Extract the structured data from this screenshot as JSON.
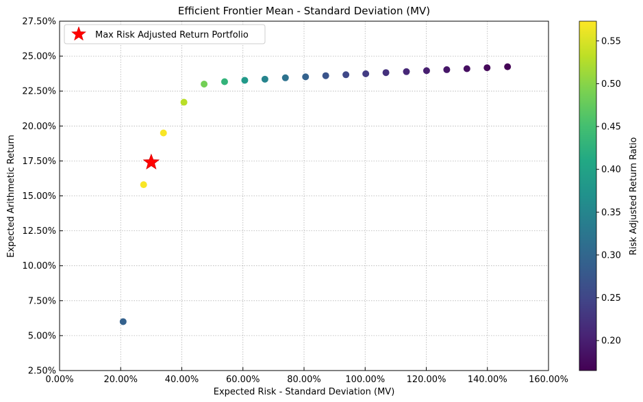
{
  "chart_data": {
    "type": "scatter",
    "title": "Efficient Frontier Mean - Standard Deviation (MV)",
    "xlabel": "Expected Risk - Standard Deviation (MV)",
    "ylabel": "Expected Arithmetic Return",
    "xlim": [
      0.0,
      1.6
    ],
    "ylim": [
      0.025,
      0.275
    ],
    "x_ticks": [
      0.0,
      0.2,
      0.4,
      0.6,
      0.8,
      1.0,
      1.2,
      1.4,
      1.6
    ],
    "x_tick_labels": [
      "0.00%",
      "20.00%",
      "40.00%",
      "60.00%",
      "80.00%",
      "100.00%",
      "120.00%",
      "140.00%",
      "160.00%"
    ],
    "y_ticks": [
      0.025,
      0.05,
      0.075,
      0.1,
      0.125,
      0.15,
      0.175,
      0.2,
      0.225,
      0.25,
      0.275
    ],
    "y_tick_labels": [
      "2.50%",
      "5.00%",
      "7.50%",
      "10.00%",
      "12.50%",
      "15.00%",
      "17.50%",
      "20.00%",
      "22.50%",
      "25.00%",
      "27.50%"
    ],
    "grid": true,
    "legend": {
      "placement": "top-left",
      "entries": [
        {
          "label": "Max Risk Adjusted Return Portfolio",
          "marker": "star",
          "color": "#ff0000"
        }
      ]
    },
    "colorbar": {
      "label": "Risk Adjusted Return Ratio",
      "range": [
        0.165,
        0.573
      ],
      "ticks": [
        0.2,
        0.25,
        0.3,
        0.35,
        0.4,
        0.45,
        0.5,
        0.55
      ],
      "tick_labels": [
        "0.20",
        "0.25",
        "0.30",
        "0.35",
        "0.40",
        "0.45",
        "0.50",
        "0.55"
      ],
      "colormap": "viridis"
    },
    "points": [
      {
        "x": 0.208,
        "y": 0.06,
        "ratio": 0.29
      },
      {
        "x": 0.275,
        "y": 0.158,
        "ratio": 0.57
      },
      {
        "x": 0.34,
        "y": 0.195,
        "ratio": 0.57
      },
      {
        "x": 0.407,
        "y": 0.217,
        "ratio": 0.53
      },
      {
        "x": 0.473,
        "y": 0.23,
        "ratio": 0.486
      },
      {
        "x": 0.54,
        "y": 0.2317,
        "ratio": 0.43
      },
      {
        "x": 0.606,
        "y": 0.2327,
        "ratio": 0.384
      },
      {
        "x": 0.672,
        "y": 0.2335,
        "ratio": 0.348
      },
      {
        "x": 0.739,
        "y": 0.2345,
        "ratio": 0.318
      },
      {
        "x": 0.805,
        "y": 0.2352,
        "ratio": 0.292
      },
      {
        "x": 0.871,
        "y": 0.236,
        "ratio": 0.271
      },
      {
        "x": 0.937,
        "y": 0.2367,
        "ratio": 0.253
      },
      {
        "x": 1.002,
        "y": 0.2374,
        "ratio": 0.237
      },
      {
        "x": 1.068,
        "y": 0.2382,
        "ratio": 0.223
      },
      {
        "x": 1.135,
        "y": 0.2389,
        "ratio": 0.211
      },
      {
        "x": 1.201,
        "y": 0.2396,
        "ratio": 0.2
      },
      {
        "x": 1.267,
        "y": 0.2403,
        "ratio": 0.19
      },
      {
        "x": 1.333,
        "y": 0.241,
        "ratio": 0.181
      },
      {
        "x": 1.399,
        "y": 0.2417,
        "ratio": 0.173
      },
      {
        "x": 1.466,
        "y": 0.2424,
        "ratio": 0.166
      }
    ],
    "max_ratio_portfolio": {
      "x": 0.3,
      "y": 0.174
    }
  }
}
